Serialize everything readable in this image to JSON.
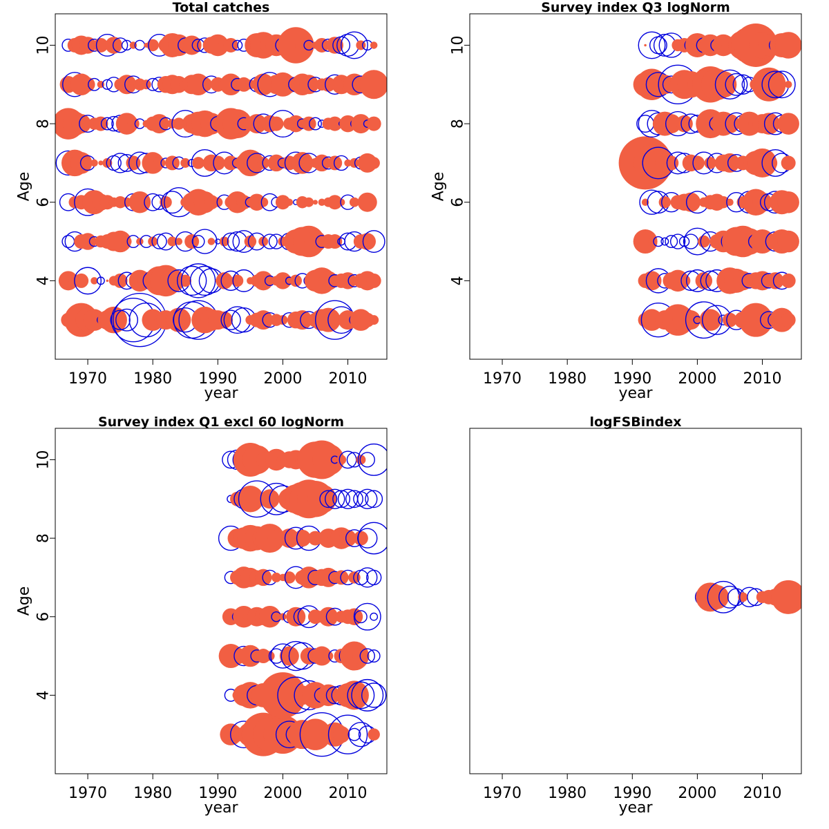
{
  "colors": {
    "positive": "#f15f43",
    "negative": "#0000dd",
    "frame": "#000000"
  },
  "chart_data": [
    {
      "type": "scatter",
      "title": "Total catches",
      "xlabel": "year",
      "ylabel": "Age",
      "xlim": [
        1965,
        2016
      ],
      "ylim": [
        2,
        10.8
      ],
      "xticks": [
        1970,
        1980,
        1990,
        2000,
        2010
      ],
      "yticks": [
        4,
        6,
        8,
        10
      ],
      "x_start": 1967,
      "x_end": 2014,
      "ages": [
        3,
        4,
        5,
        6,
        7,
        8,
        9,
        10
      ],
      "encoding": "bubble radius = |residual|; filled = positive, open = negative",
      "residuals": [
        [
          0.6,
          -0.7,
          1.4,
          1.0,
          0.9,
          -0.3,
          0.8,
          1.1,
          -0.8,
          -0.9,
          -1.8,
          -2.2,
          -1.4,
          0.9,
          0.4,
          0.8,
          0.6,
          1.0,
          -1.0,
          -1.5,
          -1.6,
          1.1,
          0.9,
          0.8,
          0.7,
          -0.8,
          -1.1,
          -1.0,
          0.4,
          0.6,
          0.8,
          -0.6,
          0.5,
          0.4,
          -0.6,
          0.7,
          0.8,
          -0.7,
          0.6,
          0.9,
          1.0,
          -1.6,
          -1.1,
          0.8,
          -0.4,
          0.9,
          0.6,
          0.4
        ],
        [
          0.8,
          0.5,
          0.6,
          -1.1,
          0.3,
          -0.3,
          0.1,
          0.4,
          0.6,
          -0.7,
          -0.6,
          0.9,
          0.7,
          -0.8,
          1.2,
          1.3,
          1.0,
          -0.9,
          0.5,
          -1.2,
          -1.4,
          -1.2,
          -1.0,
          0.2,
          0.7,
          -0.8,
          0.5,
          -0.9,
          0.3,
          0.5,
          0.8,
          -0.4,
          0.4,
          0.7,
          -0.3,
          0.5,
          -0.6,
          -0.4,
          0.9,
          1.1,
          0.8,
          -0.5,
          0.6,
          0.7,
          -0.5,
          0.6,
          0.8,
          0.6
        ],
        [
          -0.5,
          -0.8,
          0.6,
          0.7,
          -0.4,
          0.5,
          0.6,
          0.8,
          0.9,
          0.4,
          -0.5,
          0.3,
          -0.5,
          0.4,
          -0.6,
          -0.7,
          0.4,
          0.3,
          -0.8,
          0.6,
          -0.5,
          -1.0,
          0.3,
          -0.2,
          0.4,
          -0.7,
          -0.8,
          -0.9,
          0.5,
          -0.7,
          0.4,
          -0.6,
          -0.6,
          0.4,
          -0.7,
          1.0,
          1.2,
          1.3,
          0.9,
          -0.5,
          0.6,
          0.6,
          -0.3,
          -0.7,
          -0.8,
          0.6,
          0.7,
          -0.9
        ],
        [
          -0.7,
          0.5,
          0.6,
          -1.1,
          1.0,
          0.7,
          0.6,
          0.4,
          0.5,
          0.4,
          -0.7,
          0.9,
          0.3,
          -0.7,
          -0.6,
          0.5,
          -0.9,
          -1.2,
          0.4,
          0.8,
          1.1,
          0.9,
          0.6,
          0.4,
          -0.6,
          0.5,
          0.9,
          0.6,
          -0.4,
          0.7,
          0.4,
          -0.7,
          -0.4,
          0.6,
          0.3,
          -0.2,
          0.5,
          0.4,
          0.2,
          0.3,
          0.4,
          0.6,
          0.3,
          -0.6,
          0.4,
          0.3,
          0.8,
          0.2
        ],
        [
          -1.0,
          1.1,
          0.9,
          -0.6,
          0.3,
          0.2,
          0.4,
          -0.6,
          -0.8,
          -0.7,
          0.6,
          -0.9,
          -0.8,
          0.9,
          0.5,
          -0.4,
          0.6,
          -0.5,
          0.4,
          -0.3,
          0.5,
          -1.1,
          0.7,
          0.6,
          -0.9,
          0.6,
          -0.4,
          0.7,
          1.1,
          -0.8,
          0.5,
          -0.6,
          0.7,
          -0.4,
          0.6,
          -0.9,
          0.9,
          -0.8,
          0.4,
          0.7,
          -0.5,
          0.6,
          -0.6,
          0.3,
          0.4,
          -0.5,
          0.8,
          0.5
        ],
        [
          1.3,
          1.0,
          0.8,
          -0.7,
          0.5,
          0.6,
          -0.5,
          -0.6,
          -0.7,
          0.9,
          0.5,
          -0.4,
          0.3,
          0.6,
          0.8,
          -0.5,
          0.4,
          0.5,
          -1.1,
          0.8,
          1.0,
          1.1,
          0.9,
          -0.6,
          0.5,
          1.3,
          1.2,
          -0.5,
          0.6,
          0.8,
          -0.8,
          0.7,
          0.6,
          -1.1,
          0.5,
          0.7,
          -0.4,
          0.6,
          -0.5,
          -0.3,
          0.5,
          0.6,
          -0.2,
          0.7,
          -0.3,
          0.8,
          -0.3,
          0.6
        ],
        [
          0.7,
          -1.0,
          0.9,
          0.6,
          -0.5,
          0.3,
          -0.4,
          -0.6,
          0.5,
          0.8,
          -0.7,
          0.5,
          0.4,
          -0.5,
          -0.6,
          0.7,
          0.8,
          0.7,
          0.5,
          0.8,
          0.9,
          0.6,
          -0.7,
          0.6,
          0.5,
          0.9,
          -0.5,
          0.6,
          0.4,
          -0.6,
          0.9,
          -1.0,
          0.8,
          1.0,
          0.7,
          -0.6,
          0.9,
          0.8,
          -0.6,
          0.5,
          0.6,
          -0.8,
          0.8,
          0.6,
          0.9,
          -0.7,
          0.5,
          1.2
        ],
        [
          -0.5,
          0.6,
          0.8,
          0.7,
          -0.5,
          0.6,
          -0.9,
          0.7,
          -0.6,
          -0.4,
          0.3,
          -0.4,
          0.2,
          0.5,
          -0.9,
          0.6,
          1.0,
          0.9,
          -0.6,
          0.8,
          -0.5,
          -0.6,
          0.7,
          0.9,
          0.5,
          0.6,
          -0.4,
          -0.5,
          0.3,
          1.0,
          1.1,
          0.8,
          0.9,
          -0.6,
          0.8,
          1.5,
          0.6,
          -0.4,
          0.3,
          0.6,
          -0.5,
          0.7,
          -0.7,
          -0.9,
          -1.1,
          0.4,
          -0.4,
          0.3
        ]
      ]
    },
    {
      "type": "scatter",
      "title": "Survey index Q3 logNorm",
      "xlabel": "year",
      "ylabel": "Age",
      "xlim": [
        1965,
        2016
      ],
      "ylim": [
        2,
        10.8
      ],
      "xticks": [
        1970,
        1980,
        1990,
        2000,
        2010
      ],
      "yticks": [
        4,
        6,
        8,
        10
      ],
      "x_start": 1992,
      "x_end": 2014,
      "ages": [
        3,
        4,
        5,
        6,
        7,
        8,
        9,
        10
      ],
      "encoding": "bubble radius = |residual|; filled = positive, open = negative",
      "residuals": [
        [
          0.6,
          0.9,
          -1.4,
          0.8,
          0.7,
          1.3,
          1.0,
          0.8,
          -0.3,
          -1.5,
          0.9,
          -1.2,
          -0.4,
          0.6,
          -0.8,
          0.7,
          0.6,
          1.4,
          0.5,
          -0.7,
          -0.6,
          1.0,
          0.6
        ],
        [
          0.6,
          0.8,
          -1.0,
          -0.6,
          0.7,
          0.9,
          0.5,
          -0.8,
          -0.9,
          0.7,
          -0.8,
          -0.9,
          -0.5,
          1.1,
          1.0,
          0.8,
          -0.6,
          0.7,
          0.8,
          -0.6,
          0.7,
          -0.7,
          0.6
        ],
        [
          1.0,
          0.3,
          -0.4,
          -0.3,
          -0.5,
          -0.6,
          -0.4,
          -0.6,
          -1.1,
          0.5,
          -0.8,
          0.6,
          0.9,
          -0.7,
          1.2,
          1.3,
          1.1,
          -0.6,
          1.0,
          0.7,
          -0.8,
          1.0,
          0.9
        ],
        [
          0.3,
          -1.0,
          -0.9,
          0.5,
          -0.8,
          0.6,
          0.7,
          0.8,
          -0.9,
          0.4,
          0.6,
          0.7,
          0.5,
          0.3,
          -0.8,
          0.5,
          -0.9,
          1.1,
          0.8,
          -0.7,
          -0.9,
          1.0,
          0.9
        ],
        [
          2.2,
          1.5,
          -1.3,
          0.8,
          0.6,
          -0.9,
          -0.8,
          0.7,
          0.6,
          -0.9,
          0.5,
          -0.8,
          0.7,
          0.8,
          -0.7,
          0.6,
          0.4,
          1.0,
          1.2,
          0.7,
          -1.1,
          -0.8,
          0.6
        ],
        [
          -0.7,
          -1.1,
          -0.9,
          1.0,
          0.8,
          -1.0,
          0.7,
          -0.8,
          -0.7,
          0.4,
          1.2,
          -0.6,
          1.0,
          0.8,
          -0.9,
          -0.7,
          1.0,
          0.6,
          0.8,
          0.9,
          -0.9,
          -0.7,
          0.9
        ],
        [
          1.0,
          1.3,
          -1.0,
          0.8,
          -0.7,
          -1.6,
          1.2,
          1.1,
          0.8,
          -0.9,
          1.5,
          1.3,
          1.1,
          -1.2,
          -0.9,
          -0.8,
          -0.6,
          0.5,
          -0.5,
          1.4,
          -1.1,
          -1.1,
          0.3
        ],
        [
          0.1,
          -1.1,
          -0.7,
          -0.9,
          -1.0,
          0.5,
          0.6,
          -0.5,
          1.0,
          -0.6,
          0.9,
          -0.5,
          0.9,
          0.7,
          -0.6,
          1.2,
          1.5,
          1.8,
          1.1,
          0.9,
          -0.5,
          1.0,
          1.1
        ]
      ]
    },
    {
      "type": "scatter",
      "title": "Survey index Q1 excl 60 logNorm",
      "xlabel": "year",
      "ylabel": "Age",
      "xlim": [
        1965,
        2016
      ],
      "ylim": [
        2,
        10.8
      ],
      "xticks": [
        1970,
        1980,
        1990,
        2000,
        2010
      ],
      "yticks": [
        4,
        6,
        8,
        10
      ],
      "x_start": 1992,
      "x_end": 2014,
      "ages": [
        3,
        4,
        5,
        6,
        7,
        8,
        9,
        10
      ],
      "encoding": "bubble radius = |residual|; filled = positive, open = negative",
      "residuals": [
        [
          0.9,
          0.6,
          -1.1,
          1.0,
          -1.0,
          1.8,
          1.4,
          0.8,
          1.6,
          -1.1,
          -0.8,
          1.2,
          -0.7,
          1.3,
          -1.8,
          0.6,
          1.0,
          0.7,
          -1.6,
          -0.5,
          -1.0,
          -0.7,
          0.5
        ],
        [
          -0.5,
          0.4,
          0.9,
          1.1,
          -0.8,
          1.0,
          0.7,
          0.6,
          1.9,
          1.2,
          -1.5,
          0.8,
          -1.2,
          1.1,
          -0.6,
          0.9,
          -0.7,
          -0.8,
          1.0,
          1.2,
          -1.1,
          -1.3,
          -1.0
        ],
        [
          1.0,
          0.7,
          -0.8,
          0.9,
          -0.5,
          0.6,
          0.4,
          -0.6,
          -1.0,
          0.8,
          -1.2,
          -1.1,
          0.7,
          -0.6,
          0.8,
          0.4,
          -0.5,
          0.6,
          -0.7,
          1.2,
          0.7,
          -0.6,
          -0.5
        ],
        [
          0.7,
          -0.4,
          0.9,
          0.6,
          0.8,
          0.7,
          0.9,
          -0.4,
          0.3,
          -0.5,
          0.8,
          -0.7,
          -0.9,
          0.6,
          0.5,
          0.8,
          -0.7,
          0.5,
          0.6,
          0.7,
          -0.5,
          -1.1,
          -0.3
        ],
        [
          -0.5,
          0.6,
          0.9,
          0.8,
          0.6,
          0.7,
          -0.6,
          0.4,
          0.3,
          0.5,
          -0.9,
          0.6,
          0.9,
          -0.6,
          0.7,
          0.8,
          -0.5,
          0.6,
          -0.6,
          0.5,
          -0.6,
          -0.8,
          -0.6
        ],
        [
          -1.0,
          0.8,
          0.9,
          1.1,
          1.0,
          0.9,
          1.2,
          0.7,
          0.6,
          0.8,
          -0.9,
          0.7,
          -1.0,
          0.6,
          0.5,
          0.8,
          0.6,
          0.9,
          0.7,
          -0.7,
          0.6,
          -0.8,
          -1.3
        ],
        [
          -0.3,
          0.6,
          -0.8,
          1.1,
          -1.5,
          0.2,
          0.8,
          -1.3,
          -1.1,
          0.9,
          1.2,
          1.4,
          1.6,
          1.5,
          1.2,
          -0.7,
          -0.8,
          -0.7,
          -0.8,
          -0.7,
          -0.6,
          -0.8,
          -0.7
        ],
        [
          -0.7,
          -0.8,
          -0.9,
          1.4,
          1.2,
          0.6,
          0.3,
          0.9,
          0.5,
          0.7,
          0.8,
          0.6,
          0.9,
          1.5,
          1.6,
          1.3,
          -0.3,
          0.4,
          -0.7,
          -0.6,
          0.4,
          -0.6,
          -1.3
        ]
      ]
    },
    {
      "type": "scatter",
      "title": "logFSBindex",
      "xlabel": "year",
      "ylabel": "",
      "xlim": [
        1965,
        2016
      ],
      "ylim": [
        2,
        10.8
      ],
      "xticks": [
        1970,
        1980,
        1990,
        2000,
        2010
      ],
      "yticks": [],
      "x_start": 2001,
      "x_end": 2014,
      "ages": [
        6.5
      ],
      "encoding": "bubble radius = |residual|; filled = positive, open = negative",
      "residuals": [
        [
          -0.7,
          1.2,
          1.0,
          -1.3,
          -0.9,
          -0.7,
          0.4,
          -0.8,
          -0.7,
          0.5,
          0.6,
          0.7,
          0.6,
          1.4
        ]
      ]
    }
  ]
}
